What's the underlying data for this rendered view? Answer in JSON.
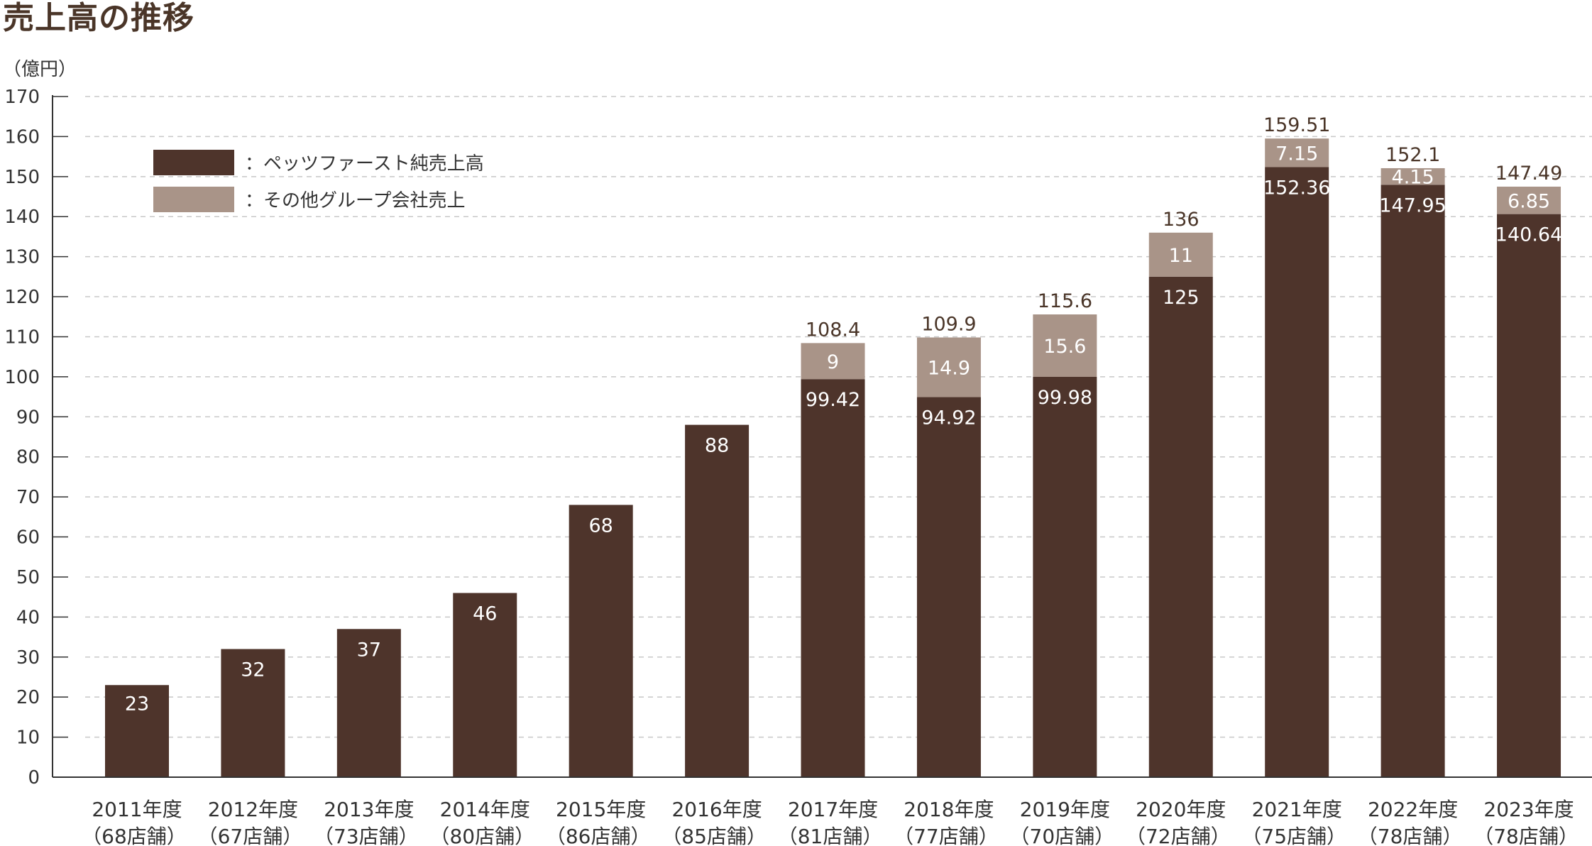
{
  "chart_data": {
    "type": "bar",
    "stacked": true,
    "title": "売上高の推移",
    "ylabel": "（億円）",
    "ylim": [
      0,
      170
    ],
    "yticks": [
      0,
      10,
      20,
      30,
      40,
      50,
      60,
      70,
      80,
      90,
      100,
      110,
      120,
      130,
      140,
      150,
      160,
      170
    ],
    "grid": true,
    "legend_position": "top-left",
    "categories": [
      [
        "2011年度",
        "（68店舗）"
      ],
      [
        "2012年度",
        "（67店舗）"
      ],
      [
        "2013年度",
        "（73店舗）"
      ],
      [
        "2014年度",
        "（80店舗）"
      ],
      [
        "2015年度",
        "（86店舗）"
      ],
      [
        "2016年度",
        "（85店舗）"
      ],
      [
        "2017年度",
        "（81店舗）"
      ],
      [
        "2018年度",
        "（77店舗）"
      ],
      [
        "2019年度",
        "（70店舗）"
      ],
      [
        "2020年度",
        "（72店舗）"
      ],
      [
        "2021年度",
        "（75店舗）"
      ],
      [
        "2022年度",
        "（78店舗）"
      ],
      [
        "2023年度",
        "（78店舗）"
      ]
    ],
    "series": [
      {
        "name": "：ペッツファースト純売上高",
        "color": "#4e342b",
        "values": [
          23,
          32,
          37,
          46,
          68,
          88,
          99.42,
          94.92,
          99.98,
          125,
          152.36,
          147.95,
          140.64
        ]
      },
      {
        "name": "：その他グループ会社売上",
        "color": "#a99488",
        "values": [
          null,
          null,
          null,
          null,
          null,
          null,
          9,
          14.9,
          15.6,
          11,
          7.15,
          4.15,
          6.85
        ]
      }
    ],
    "totals": [
      null,
      null,
      null,
      null,
      null,
      null,
      108.4,
      109.9,
      115.6,
      136,
      159.51,
      152.1,
      147.49
    ]
  }
}
